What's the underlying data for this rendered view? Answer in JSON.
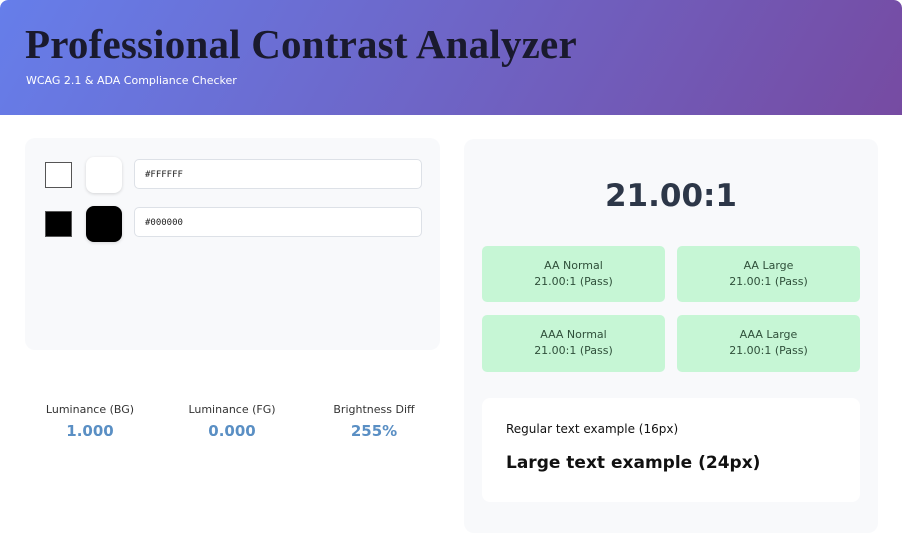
{
  "header": {
    "title": "Professional Contrast Analyzer",
    "subtitle": "WCAG 2.1 & ADA Compliance Checker"
  },
  "inputs": [
    {
      "value": "#FFFFFF"
    },
    {
      "value": "#000000"
    }
  ],
  "stats": [
    {
      "label": "Luminance (BG)",
      "value": "1.000"
    },
    {
      "label": "Luminance (FG)",
      "value": "0.000"
    },
    {
      "label": "Brightness Diff",
      "value": "255%"
    }
  ],
  "ratio": "21.00:1",
  "checks": [
    {
      "label": "AA Normal",
      "result": "21.00:1 (Pass)"
    },
    {
      "label": "AA Large",
      "result": "21.00:1 (Pass)"
    },
    {
      "label": "AAA Normal",
      "result": "21.00:1 (Pass)"
    },
    {
      "label": "AAA Large",
      "result": "21.00:1 (Pass)"
    }
  ],
  "examples": {
    "regular": "Regular text example (16px)",
    "large": "Large text example (24px)"
  }
}
